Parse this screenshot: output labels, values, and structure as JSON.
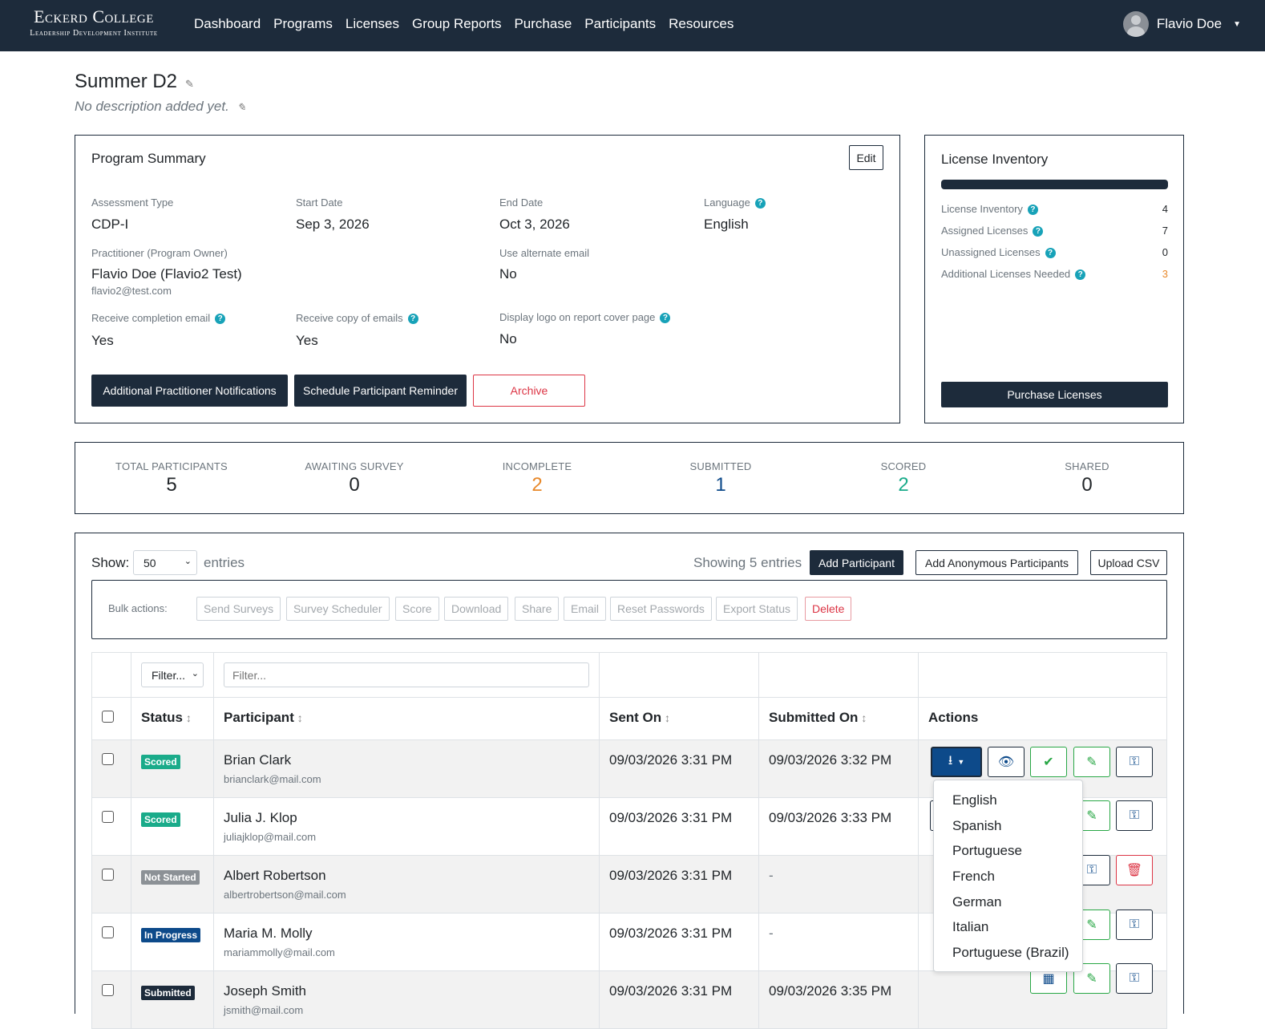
{
  "nav": {
    "logo_main": "Eckerd College",
    "logo_sub": "Leadership Development Institute",
    "menu": [
      "Dashboard",
      "Programs",
      "Licenses",
      "Group Reports",
      "Purchase",
      "Participants",
      "Resources"
    ],
    "user": "Flavio Doe"
  },
  "page": {
    "title": "Summer D2",
    "description": "No description added yet."
  },
  "summary": {
    "heading": "Program Summary",
    "edit": "Edit",
    "assessment_type_label": "Assessment Type",
    "assessment_type": "CDP-I",
    "start_date_label": "Start Date",
    "start_date": "Sep 3, 2026",
    "end_date_label": "End Date",
    "end_date": "Oct 3, 2026",
    "language_label": "Language",
    "language": "English",
    "practitioner_label": "Practitioner (Program Owner)",
    "practitioner": "Flavio Doe (Flavio2 Test)",
    "practitioner_email": "flavio2@test.com",
    "alt_email_label": "Use alternate email",
    "alt_email": "No",
    "completion_label": "Receive completion email",
    "completion": "Yes",
    "copy_label": "Receive copy of emails",
    "copy": "Yes",
    "logo_label": "Display logo on report cover page",
    "logo": "No",
    "btn_notifications": "Additional Practitioner Notifications",
    "btn_reminder": "Schedule Participant Reminder",
    "btn_archive": "Archive"
  },
  "inventory": {
    "heading": "License Inventory",
    "progress": 1.0,
    "rows": [
      {
        "label": "License Inventory",
        "value": "4"
      },
      {
        "label": "Assigned Licenses",
        "value": "7"
      },
      {
        "label": "Unassigned Licenses",
        "value": "0"
      },
      {
        "label": "Additional Licenses Needed",
        "value": "3"
      }
    ],
    "purchase": "Purchase Licenses"
  },
  "stats": [
    {
      "label": "TOTAL PARTICIPANTS",
      "value": "5",
      "color": "#212529"
    },
    {
      "label": "AWAITING SURVEY",
      "value": "0",
      "color": "#212529"
    },
    {
      "label": "INCOMPLETE",
      "value": "2",
      "color": "#e8892b"
    },
    {
      "label": "SUBMITTED",
      "value": "1",
      "color": "#0d4a8a"
    },
    {
      "label": "SCORED",
      "value": "2",
      "color": "#1aab8a"
    },
    {
      "label": "SHARED",
      "value": "0",
      "color": "#212529"
    }
  ],
  "table_controls": {
    "show": "Show:",
    "entries_value": "50",
    "entries": "entries",
    "showing": "Showing 5 entries",
    "add": "Add Participant",
    "add_anon": "Add Anonymous Participants",
    "upload": "Upload CSV"
  },
  "bulk": {
    "label": "Bulk actions:",
    "buttons": [
      "Send Surveys",
      "Survey Scheduler",
      "Score",
      "Download",
      "Share",
      "Email",
      "Reset Passwords",
      "Export Status"
    ],
    "delete": "Delete"
  },
  "filters": {
    "status": "Filter...",
    "participant_placeholder": "Filter..."
  },
  "columns": [
    "Status",
    "Participant",
    "Sent On",
    "Submitted On",
    "Actions"
  ],
  "rows": [
    {
      "status": "Scored",
      "status_color": "#1aab8a",
      "name": "Brian Clark",
      "email": "brianclark@mail.com",
      "sent": "09/03/2026 3:31 PM",
      "submitted": "09/03/2026 3:32 PM"
    },
    {
      "status": "Scored",
      "status_color": "#1aab8a",
      "name": "Julia J. Klop",
      "email": "juliajklop@mail.com",
      "sent": "09/03/2026 3:31 PM",
      "submitted": "09/03/2026 3:33 PM"
    },
    {
      "status": "Not Started",
      "status_color": "#8c9196",
      "name": "Albert Robertson",
      "email": "albertrobertson@mail.com",
      "sent": "09/03/2026 3:31 PM",
      "submitted": "-"
    },
    {
      "status": "In Progress",
      "status_color": "#0d4a8a",
      "name": "Maria M. Molly",
      "email": "mariammolly@mail.com",
      "sent": "09/03/2026 3:31 PM",
      "submitted": "-"
    },
    {
      "status": "Submitted",
      "status_color": "#1d2b3b",
      "name": "Joseph Smith",
      "email": "jsmith@mail.com",
      "sent": "09/03/2026 3:31 PM",
      "submitted": "09/03/2026 3:35 PM"
    }
  ],
  "language_menu": [
    "English",
    "Spanish",
    "Portuguese",
    "French",
    "German",
    "Italian",
    "Portuguese (Brazil)"
  ]
}
